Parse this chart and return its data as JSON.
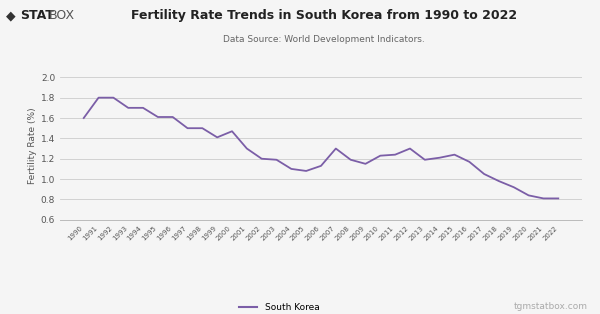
{
  "title": "Fertility Rate Trends in South Korea from 1990 to 2022",
  "subtitle": "Data Source: World Development Indicators.",
  "ylabel": "Fertility Rate (%)",
  "legend_label": "South Korea",
  "watermark": "tgmstatbox.com",
  "line_color": "#7B5EA7",
  "background_color": "#f5f5f5",
  "plot_bg_color": "#f5f5f5",
  "grid_color": "#cccccc",
  "ylim": [
    0.6,
    2.05
  ],
  "yticks": [
    0.6,
    0.8,
    1.0,
    1.2,
    1.4,
    1.6,
    1.8,
    2.0
  ],
  "years": [
    1990,
    1991,
    1992,
    1993,
    1994,
    1995,
    1996,
    1997,
    1998,
    1999,
    2000,
    2001,
    2002,
    2003,
    2004,
    2005,
    2006,
    2007,
    2008,
    2009,
    2010,
    2011,
    2012,
    2013,
    2014,
    2015,
    2016,
    2017,
    2018,
    2019,
    2020,
    2021,
    2022
  ],
  "values": [
    1.6,
    1.8,
    1.8,
    1.7,
    1.7,
    1.61,
    1.61,
    1.5,
    1.5,
    1.41,
    1.47,
    1.3,
    1.2,
    1.19,
    1.1,
    1.08,
    1.13,
    1.3,
    1.19,
    1.15,
    1.23,
    1.24,
    1.3,
    1.19,
    1.21,
    1.24,
    1.17,
    1.05,
    0.98,
    0.92,
    0.84,
    0.81,
    0.81
  ]
}
